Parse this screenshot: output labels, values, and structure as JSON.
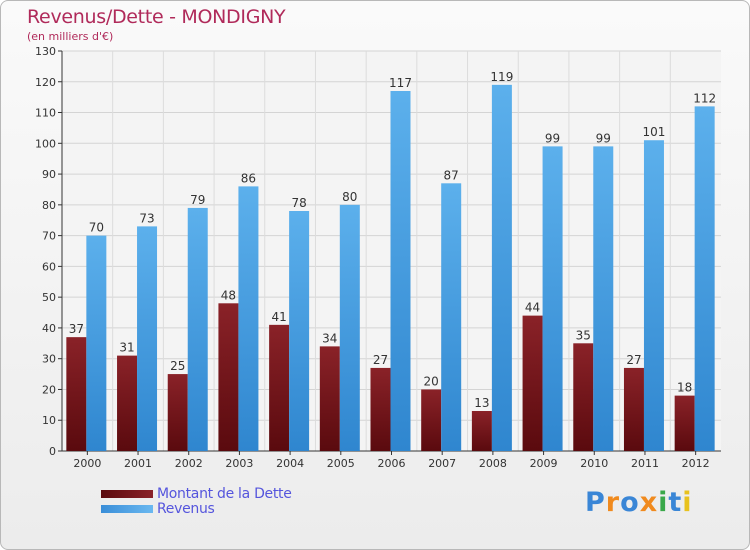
{
  "chart_data": {
    "type": "bar",
    "title": "Revenus/Dette - MONDIGNY",
    "subtitle": "(en milliers d'€)",
    "xlabel": "",
    "ylabel": "",
    "ylim": [
      0,
      130
    ],
    "yticks": [
      0,
      10,
      20,
      30,
      40,
      50,
      60,
      70,
      80,
      90,
      100,
      110,
      120,
      130
    ],
    "grid": true,
    "categories": [
      "2000",
      "2001",
      "2002",
      "2003",
      "2004",
      "2005",
      "2006",
      "2007",
      "2008",
      "2009",
      "2010",
      "2011",
      "2012"
    ],
    "series": [
      {
        "name": "Montant de la Dette",
        "color": "#7a1a1f",
        "values": [
          37,
          31,
          25,
          48,
          41,
          34,
          27,
          20,
          13,
          44,
          35,
          27,
          18
        ]
      },
      {
        "name": "Revenus",
        "color": "#4aa0e4",
        "values": [
          70,
          73,
          79,
          86,
          78,
          80,
          117,
          87,
          119,
          99,
          99,
          101,
          112
        ]
      }
    ],
    "legend_position": "bottom-left"
  },
  "logo": {
    "text": "Proxiti",
    "letters": [
      "P",
      "r",
      "o",
      "x",
      "i",
      "t",
      "i"
    ],
    "colors": [
      "#3a86d6",
      "#f08a1e",
      "#3a86d6",
      "#f08a1e",
      "#3aa84a",
      "#3a86d6",
      "#e8c21e"
    ]
  }
}
